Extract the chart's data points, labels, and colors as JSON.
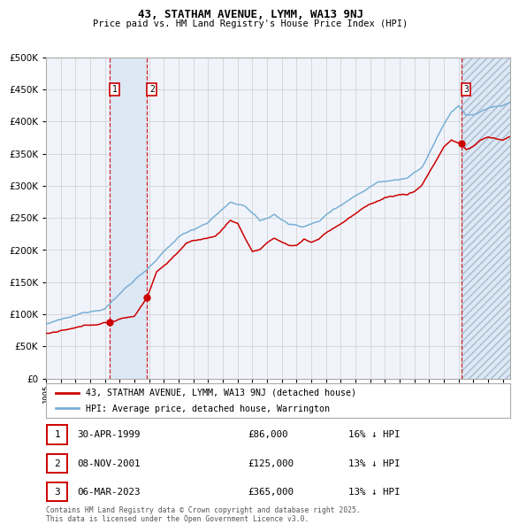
{
  "title": "43, STATHAM AVENUE, LYMM, WA13 9NJ",
  "subtitle": "Price paid vs. HM Land Registry's House Price Index (HPI)",
  "legend_line1": "43, STATHAM AVENUE, LYMM, WA13 9NJ (detached house)",
  "legend_line2": "HPI: Average price, detached house, Warrington",
  "footnote": "Contains HM Land Registry data © Crown copyright and database right 2025.\nThis data is licensed under the Open Government Licence v3.0.",
  "transactions": [
    {
      "num": 1,
      "date": "30-APR-1999",
      "price": 86000,
      "pct": "16%",
      "year": 1999.33
    },
    {
      "num": 2,
      "date": "08-NOV-2001",
      "price": 125000,
      "pct": "13%",
      "year": 2001.85
    },
    {
      "num": 3,
      "date": "06-MAR-2023",
      "price": 365000,
      "pct": "13%",
      "year": 2023.17
    }
  ],
  "table_rows": [
    {
      "num": 1,
      "date": "30-APR-1999",
      "price": "£86,000",
      "pct": "16% ↓ HPI"
    },
    {
      "num": 2,
      "date": "08-NOV-2001",
      "price": "£125,000",
      "pct": "13% ↓ HPI"
    },
    {
      "num": 3,
      "date": "06-MAR-2023",
      "price": "£365,000",
      "pct": "13% ↓ HPI"
    }
  ],
  "ylim": [
    0,
    500000
  ],
  "yticks": [
    0,
    50000,
    100000,
    150000,
    200000,
    250000,
    300000,
    350000,
    400000,
    450000,
    500000
  ],
  "xlim_start": 1995.0,
  "xlim_end": 2026.5,
  "xtick_years": [
    1995,
    1996,
    1997,
    1998,
    1999,
    2000,
    2001,
    2002,
    2003,
    2004,
    2005,
    2006,
    2007,
    2008,
    2009,
    2010,
    2011,
    2012,
    2013,
    2014,
    2015,
    2016,
    2017,
    2018,
    2019,
    2020,
    2021,
    2022,
    2023,
    2024,
    2025,
    2026
  ],
  "red_color": "#cc0000",
  "blue_color": "#7aafd4",
  "bg_color": "#f0f4fa",
  "grid_color": "#cccccc",
  "highlight_color": "#dde8f5",
  "hatch_color": "#aabbcc"
}
